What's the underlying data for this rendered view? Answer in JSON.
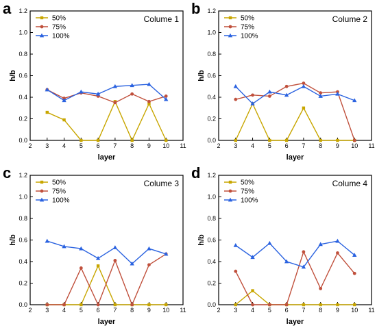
{
  "colors": {
    "50%": "#c8a600",
    "75%": "#c0503c",
    "100%": "#2a62e0"
  },
  "chart_data": [
    {
      "type": "line",
      "panel_letter": "a",
      "title": "Columе 1",
      "xlabel": "layer",
      "ylabel": "h/b",
      "xlim": [
        2,
        11
      ],
      "ylim": [
        0,
        1.2
      ],
      "xticks": [
        "2",
        "3",
        "4",
        "5",
        "6",
        "7",
        "8",
        "9",
        "10",
        "11"
      ],
      "yticks": [
        "0.0",
        "0.2",
        "0.4",
        "0.6",
        "0.8",
        "1.0",
        "1.2"
      ],
      "legend_position": "top-left",
      "x": [
        3,
        4,
        5,
        6,
        7,
        8,
        9,
        10
      ],
      "series": [
        {
          "name": "50%",
          "marker": "square",
          "values": [
            0.26,
            0.19,
            0.0,
            0.0,
            0.36,
            0.0,
            0.34,
            0.0
          ]
        },
        {
          "name": "75%",
          "marker": "circle",
          "values": [
            0.47,
            0.39,
            0.44,
            0.41,
            0.35,
            0.43,
            0.36,
            0.41
          ]
        },
        {
          "name": "100%",
          "marker": "triangle",
          "values": [
            0.47,
            0.37,
            0.45,
            0.43,
            0.5,
            0.51,
            0.52,
            0.38
          ]
        }
      ]
    },
    {
      "type": "line",
      "panel_letter": "b",
      "title": "Columе 2",
      "xlabel": "layer",
      "ylabel": "h/b",
      "xlim": [
        2,
        11
      ],
      "ylim": [
        0,
        1.2
      ],
      "xticks": [
        "2",
        "3",
        "4",
        "5",
        "6",
        "7",
        "8",
        "9",
        "10",
        "11"
      ],
      "yticks": [
        "0.0",
        "0.2",
        "0.4",
        "0.6",
        "0.8",
        "1.0",
        "1.2"
      ],
      "legend_position": "top-left",
      "x": [
        3,
        4,
        5,
        6,
        7,
        8,
        9,
        10
      ],
      "series": [
        {
          "name": "50%",
          "marker": "square",
          "values": [
            0.0,
            0.34,
            0.0,
            0.0,
            0.3,
            0.0,
            0.0,
            0.0
          ]
        },
        {
          "name": "75%",
          "marker": "circle",
          "values": [
            0.38,
            0.42,
            0.41,
            0.5,
            0.53,
            0.44,
            0.45,
            0.0
          ]
        },
        {
          "name": "100%",
          "marker": "triangle",
          "values": [
            0.5,
            0.34,
            0.45,
            0.42,
            0.5,
            0.41,
            0.43,
            0.37
          ]
        }
      ]
    },
    {
      "type": "line",
      "panel_letter": "c",
      "title": "Columе 3",
      "xlabel": "layer",
      "ylabel": "h/b",
      "xlim": [
        2,
        11
      ],
      "ylim": [
        0,
        1.2
      ],
      "xticks": [
        "2",
        "3",
        "4",
        "5",
        "6",
        "7",
        "8",
        "9",
        "10",
        "11"
      ],
      "yticks": [
        "0.0",
        "0.2",
        "0.4",
        "0.6",
        "0.8",
        "1.0",
        "1.2"
      ],
      "legend_position": "top-left",
      "x": [
        3,
        4,
        5,
        6,
        7,
        8,
        9,
        10
      ],
      "series": [
        {
          "name": "50%",
          "marker": "square",
          "values": [
            0.0,
            0.0,
            0.0,
            0.36,
            0.0,
            0.0,
            0.0,
            0.0
          ]
        },
        {
          "name": "75%",
          "marker": "circle",
          "values": [
            0.0,
            0.0,
            0.34,
            0.0,
            0.41,
            0.0,
            0.37,
            0.47
          ]
        },
        {
          "name": "100%",
          "marker": "triangle",
          "values": [
            0.59,
            0.54,
            0.52,
            0.43,
            0.53,
            0.38,
            0.52,
            0.47
          ]
        }
      ]
    },
    {
      "type": "line",
      "panel_letter": "d",
      "title": "Columе 4",
      "xlabel": "layer",
      "ylabel": "h/b",
      "xlim": [
        2,
        11
      ],
      "ylim": [
        0,
        1.2
      ],
      "xticks": [
        "2",
        "3",
        "4",
        "5",
        "6",
        "7",
        "8",
        "9",
        "10",
        "11"
      ],
      "yticks": [
        "0.0",
        "0.2",
        "0.4",
        "0.6",
        "0.8",
        "1.0",
        "1.2"
      ],
      "legend_position": "top-left",
      "x": [
        3,
        4,
        5,
        6,
        7,
        8,
        9,
        10
      ],
      "series": [
        {
          "name": "50%",
          "marker": "square",
          "values": [
            0.0,
            0.13,
            0.0,
            0.0,
            0.0,
            0.0,
            0.0,
            0.0
          ]
        },
        {
          "name": "75%",
          "marker": "circle",
          "values": [
            0.31,
            0.0,
            0.0,
            0.0,
            0.49,
            0.15,
            0.48,
            0.29
          ]
        },
        {
          "name": "100%",
          "marker": "triangle",
          "values": [
            0.55,
            0.44,
            0.57,
            0.4,
            0.35,
            0.56,
            0.59,
            0.46
          ]
        }
      ]
    }
  ]
}
